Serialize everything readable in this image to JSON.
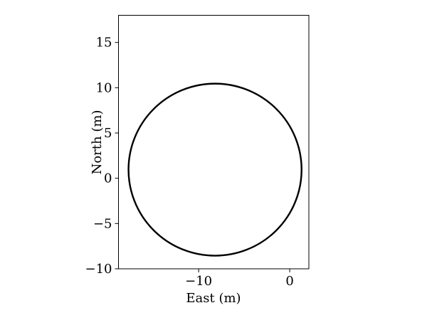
{
  "chart_data": {
    "type": "line",
    "title": "",
    "xlabel": "East (m)",
    "ylabel": "North (m)",
    "xlim": [
      -18.8,
      2.1
    ],
    "ylim": [
      -10,
      18
    ],
    "xticks": [
      -10,
      0
    ],
    "xtick_labels": [
      "−10",
      "0"
    ],
    "yticks": [
      -10,
      -5,
      0,
      5,
      10,
      15
    ],
    "ytick_labels": [
      "−10",
      "−5",
      "0",
      "5",
      "10",
      "15"
    ],
    "grid": false,
    "legend": "none",
    "series": [
      {
        "shape": "circle",
        "center": {
          "x": -8.2,
          "y": 0.95
        },
        "radius": 9.5,
        "color": "#000000"
      }
    ]
  }
}
